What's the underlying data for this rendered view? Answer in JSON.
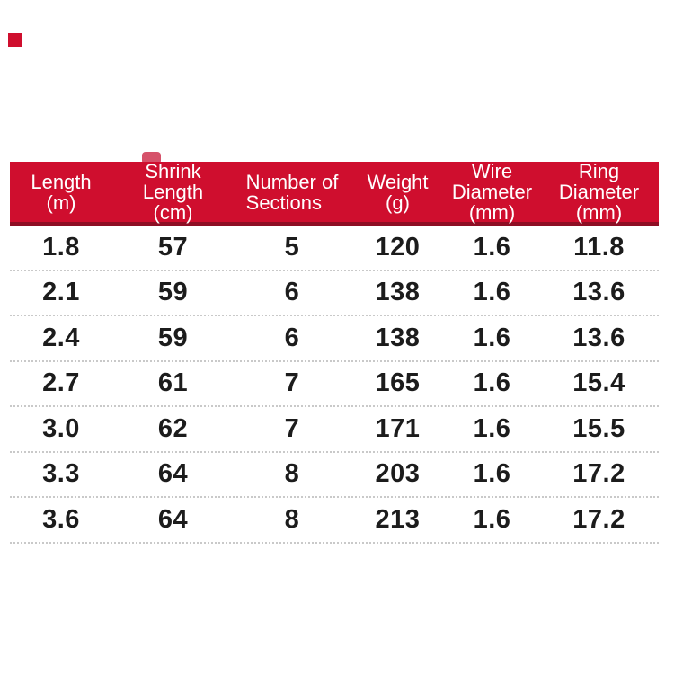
{
  "colors": {
    "header_red": "#CF0E2E",
    "header_border_dark_red": "#8E0E24",
    "notch_red": "#D6526A",
    "divider_gray": "#C9C9C9",
    "data_text": "#1C1C1C",
    "header_text": "#FFFFFF",
    "background": "#FFFFFF"
  },
  "table": {
    "columns": [
      {
        "id": "length",
        "label": "Length (m)",
        "label_lines": [
          "Length",
          "(m)"
        ],
        "align": "center"
      },
      {
        "id": "shrink-length",
        "label": "Shrink Length (cm)",
        "label_lines": [
          "Shrink",
          "Length",
          "(cm)"
        ],
        "align": "center"
      },
      {
        "id": "sections",
        "label": "Number of Sections",
        "label_lines": [
          "Number of",
          "Sections"
        ],
        "align": "left"
      },
      {
        "id": "weight",
        "label": "Weight (g)",
        "label_lines": [
          "Weight",
          "(g)"
        ],
        "align": "center"
      },
      {
        "id": "wire-diameter",
        "label": "Wire Diameter (mm)",
        "label_lines": [
          "Wire",
          "Diameter",
          "(mm)"
        ],
        "align": "center"
      },
      {
        "id": "ring-diameter",
        "label": "Ring Diameter (mm)",
        "label_lines": [
          "Ring",
          "Diameter",
          "(mm)"
        ],
        "align": "center"
      }
    ],
    "rows": [
      [
        "1.8",
        "57",
        "5",
        "120",
        "1.6",
        "11.8"
      ],
      [
        "2.1",
        "59",
        "6",
        "138",
        "1.6",
        "13.6"
      ],
      [
        "2.4",
        "59",
        "6",
        "138",
        "1.6",
        "13.6"
      ],
      [
        "2.7",
        "61",
        "7",
        "165",
        "1.6",
        "15.4"
      ],
      [
        "3.0",
        "62",
        "7",
        "171",
        "1.6",
        "15.5"
      ],
      [
        "3.3",
        "64",
        "8",
        "203",
        "1.6",
        "17.2"
      ],
      [
        "3.6",
        "64",
        "8",
        "213",
        "1.6",
        "17.2"
      ]
    ]
  },
  "chart_data": {
    "type": "table",
    "title": "",
    "columns": [
      "Length (m)",
      "Shrink Length (cm)",
      "Number of Sections",
      "Weight (g)",
      "Wire Diameter (mm)",
      "Ring Diameter (mm)"
    ],
    "rows": [
      [
        1.8,
        57,
        5,
        120,
        1.6,
        11.8
      ],
      [
        2.1,
        59,
        6,
        138,
        1.6,
        13.6
      ],
      [
        2.4,
        59,
        6,
        138,
        1.6,
        13.6
      ],
      [
        2.7,
        61,
        7,
        165,
        1.6,
        15.4
      ],
      [
        3.0,
        62,
        7,
        171,
        1.6,
        15.5
      ],
      [
        3.3,
        64,
        8,
        203,
        1.6,
        17.2
      ],
      [
        3.6,
        64,
        8,
        213,
        1.6,
        17.2
      ]
    ],
    "layout_hints": {
      "header_background": "#CF0E2E",
      "header_text_color": "#FFFFFF",
      "row_divider": "dotted light gray",
      "grid": "horizontal dividers only"
    }
  }
}
